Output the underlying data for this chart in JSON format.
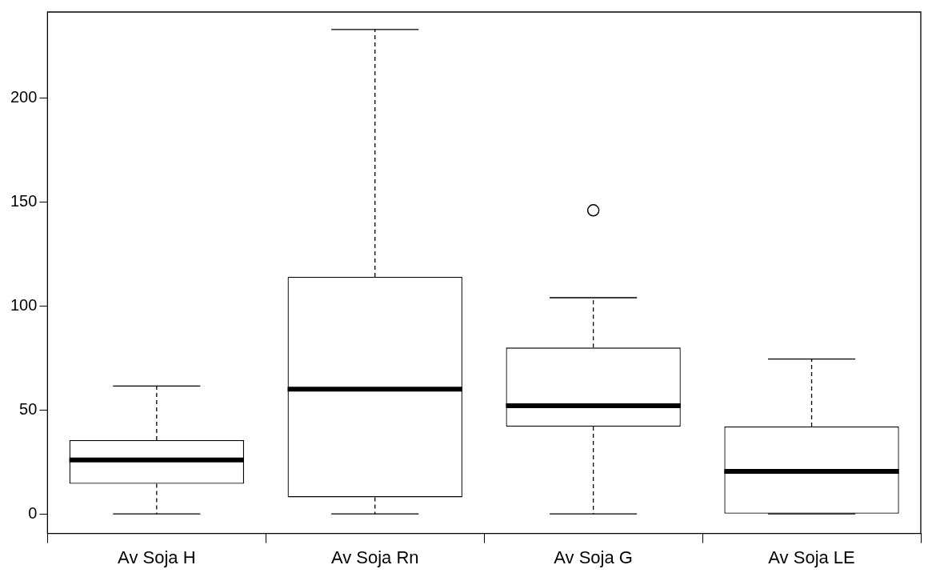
{
  "chart_data": {
    "type": "box",
    "categories": [
      "Av Soja H",
      "Av Soja Rn",
      "Av Soja G",
      "Av Soja LE"
    ],
    "boxes": [
      {
        "low": 0,
        "q1": 14.5,
        "median": 26,
        "q3": 35.5,
        "high": 61.5
      },
      {
        "low": 0,
        "q1": 8,
        "median": 60,
        "q3": 114,
        "high": 233
      },
      {
        "low": 0,
        "q1": 42,
        "median": 52,
        "q3": 80,
        "high": 104,
        "outliers": [
          146
        ]
      },
      {
        "low": 0,
        "q1": 0,
        "median": 20.5,
        "q3": 42,
        "high": 74.5
      }
    ],
    "ylim": [
      -9.4,
      241.4
    ],
    "yticks": [
      0,
      50,
      100,
      150,
      200
    ],
    "grid": false
  }
}
